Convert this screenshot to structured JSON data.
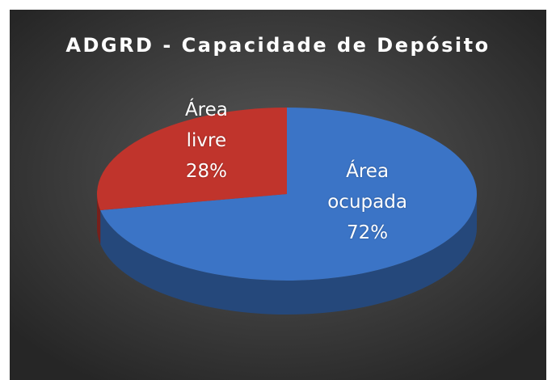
{
  "chart_data": {
    "type": "pie",
    "title": "ADGRD - Capacidade de Depósito",
    "categories": [
      "Área ocupada",
      "Área livre"
    ],
    "values": [
      72,
      28
    ],
    "value_labels": [
      "72%",
      "28%"
    ],
    "colors": [
      "#3b74c6",
      "#c0342c"
    ]
  }
}
